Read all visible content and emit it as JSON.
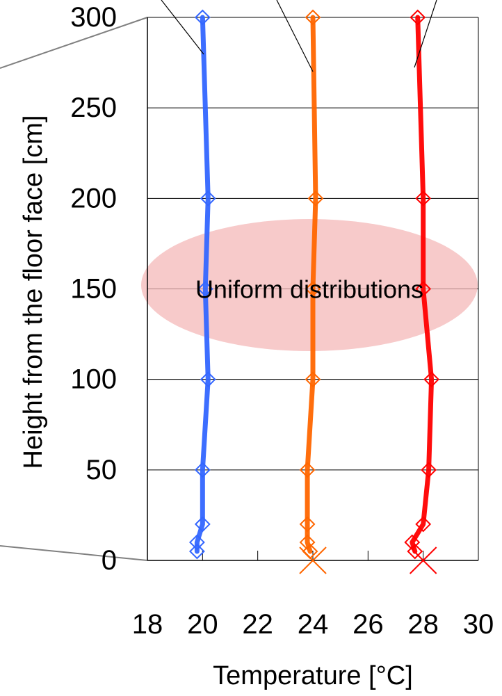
{
  "chart_data": {
    "type": "line",
    "xlabel": "Temperature [°C]",
    "ylabel": "Height from the floor face [cm]",
    "xlim": [
      18,
      30
    ],
    "ylim": [
      0,
      300
    ],
    "x_ticks": [
      "18",
      "20",
      "22",
      "24",
      "26",
      "28",
      "30"
    ],
    "y_ticks": [
      "0",
      "50",
      "100",
      "150",
      "200",
      "250",
      "300"
    ],
    "grid": "horizontal",
    "annotation": "Uniform distributions",
    "colors": {
      "blue": "#3366ff",
      "orange": "#ff6600",
      "red": "#ff0000",
      "highlight": "#f4b6b6"
    },
    "series": [
      {
        "color": "#3366ff",
        "points": [
          [
            20.0,
            300
          ],
          [
            20.2,
            200
          ],
          [
            20.1,
            150
          ],
          [
            20.2,
            100
          ],
          [
            20.0,
            50
          ],
          [
            20.0,
            20
          ],
          [
            19.8,
            10
          ],
          [
            19.8,
            5
          ]
        ]
      },
      {
        "color": "#ff6600",
        "points": [
          [
            24.0,
            300
          ],
          [
            24.1,
            200
          ],
          [
            24.0,
            150
          ],
          [
            24.0,
            100
          ],
          [
            23.8,
            50
          ],
          [
            23.8,
            20
          ],
          [
            23.8,
            10
          ],
          [
            23.9,
            5
          ]
        ],
        "floor_marker": [
          24.0,
          0
        ]
      },
      {
        "color": "#ff0000",
        "points": [
          [
            27.8,
            300
          ],
          [
            28.0,
            200
          ],
          [
            28.0,
            150
          ],
          [
            28.3,
            100
          ],
          [
            28.2,
            50
          ],
          [
            28.0,
            20
          ],
          [
            27.6,
            10
          ],
          [
            27.7,
            5
          ]
        ],
        "floor_marker": [
          28.0,
          0
        ]
      }
    ]
  }
}
